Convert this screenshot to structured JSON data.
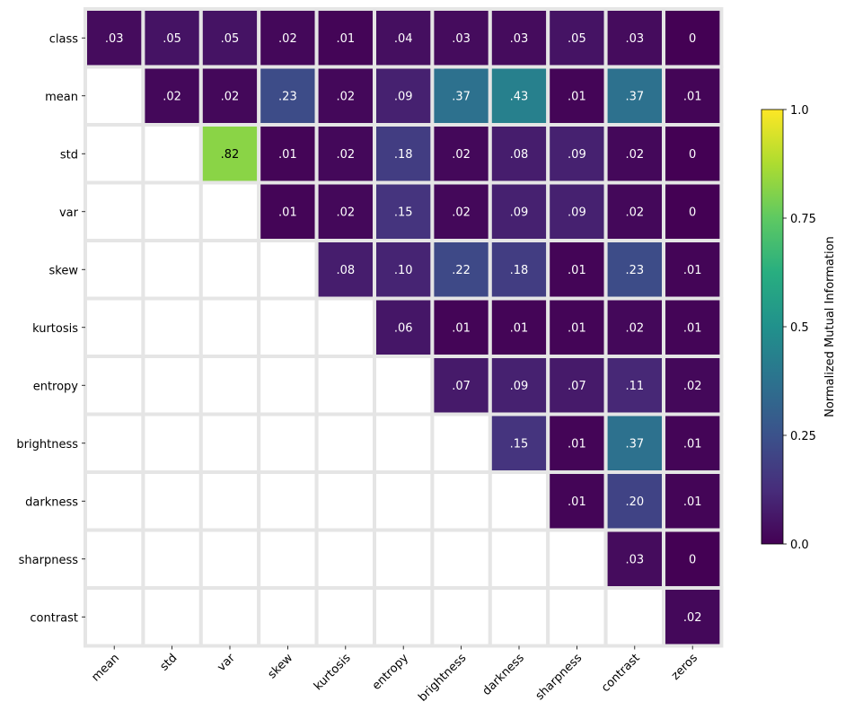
{
  "chart_data": {
    "type": "heatmap",
    "title": "",
    "xlabel": "",
    "ylabel": "",
    "x_categories": [
      "mean",
      "std",
      "var",
      "skew",
      "kurtosis",
      "entropy",
      "brightness",
      "darkness",
      "sharpness",
      "contrast",
      "zeros"
    ],
    "y_categories": [
      "class",
      "mean",
      "std",
      "var",
      "skew",
      "kurtosis",
      "entropy",
      "brightness",
      "darkness",
      "sharpness",
      "contrast"
    ],
    "matrix": [
      [
        0.03,
        0.05,
        0.05,
        0.02,
        0.01,
        0.04,
        0.03,
        0.03,
        0.05,
        0.03,
        0
      ],
      [
        null,
        0.02,
        0.02,
        0.23,
        0.02,
        0.09,
        0.37,
        0.43,
        0.01,
        0.37,
        0.01
      ],
      [
        null,
        null,
        0.82,
        0.01,
        0.02,
        0.18,
        0.02,
        0.08,
        0.09,
        0.02,
        0
      ],
      [
        null,
        null,
        null,
        0.01,
        0.02,
        0.15,
        0.02,
        0.09,
        0.09,
        0.02,
        0
      ],
      [
        null,
        null,
        null,
        null,
        0.08,
        0.1,
        0.22,
        0.18,
        0.01,
        0.23,
        0.01
      ],
      [
        null,
        null,
        null,
        null,
        null,
        0.06,
        0.01,
        0.01,
        0.01,
        0.02,
        0.01
      ],
      [
        null,
        null,
        null,
        null,
        null,
        null,
        0.07,
        0.09,
        0.07,
        0.11,
        0.02
      ],
      [
        null,
        null,
        null,
        null,
        null,
        null,
        null,
        0.15,
        0.01,
        0.37,
        0.01
      ],
      [
        null,
        null,
        null,
        null,
        null,
        null,
        null,
        null,
        0.01,
        0.2,
        0.01
      ],
      [
        null,
        null,
        null,
        null,
        null,
        null,
        null,
        null,
        null,
        0.03,
        0
      ],
      [
        null,
        null,
        null,
        null,
        null,
        null,
        null,
        null,
        null,
        null,
        0.02
      ]
    ],
    "cell_labels": [
      [
        ".03",
        ".05",
        ".05",
        ".02",
        ".01",
        ".04",
        ".03",
        ".03",
        ".05",
        ".03",
        "0"
      ],
      [
        "",
        ".02",
        ".02",
        ".23",
        ".02",
        ".09",
        ".37",
        ".43",
        ".01",
        ".37",
        ".01"
      ],
      [
        "",
        "",
        ".82",
        ".01",
        ".02",
        ".18",
        ".02",
        ".08",
        ".09",
        ".02",
        "0"
      ],
      [
        "",
        "",
        "",
        ".01",
        ".02",
        ".15",
        ".02",
        ".09",
        ".09",
        ".02",
        "0"
      ],
      [
        "",
        "",
        "",
        "",
        ".08",
        ".10",
        ".22",
        ".18",
        ".01",
        ".23",
        ".01"
      ],
      [
        "",
        "",
        "",
        "",
        "",
        ".06",
        ".01",
        ".01",
        ".01",
        ".02",
        ".01"
      ],
      [
        "",
        "",
        "",
        "",
        "",
        "",
        ".07",
        ".09",
        ".07",
        ".11",
        ".02"
      ],
      [
        "",
        "",
        "",
        "",
        "",
        "",
        "",
        ".15",
        ".01",
        ".37",
        ".01"
      ],
      [
        "",
        "",
        "",
        "",
        "",
        "",
        "",
        "",
        ".01",
        ".20",
        ".01"
      ],
      [
        "",
        "",
        "",
        "",
        "",
        "",
        "",
        "",
        "",
        ".03",
        "0"
      ],
      [
        "",
        "",
        "",
        "",
        "",
        "",
        "",
        "",
        "",
        "",
        ".02"
      ]
    ],
    "value_range": [
      0,
      1.0
    ],
    "colormap": "viridis",
    "colorbar": {
      "label": "Normalized Mutual Information",
      "ticks": [
        0.0,
        0.25,
        0.5,
        0.75,
        1.0
      ],
      "tick_labels": [
        "0.0",
        "0.25",
        "0.5",
        "0.75",
        "1.0"
      ],
      "placement": "right"
    },
    "grid": false,
    "cell_border_color": "#e5e5e5",
    "label_text_color_light": "#ffffff",
    "label_text_color_dark": "#000000"
  }
}
